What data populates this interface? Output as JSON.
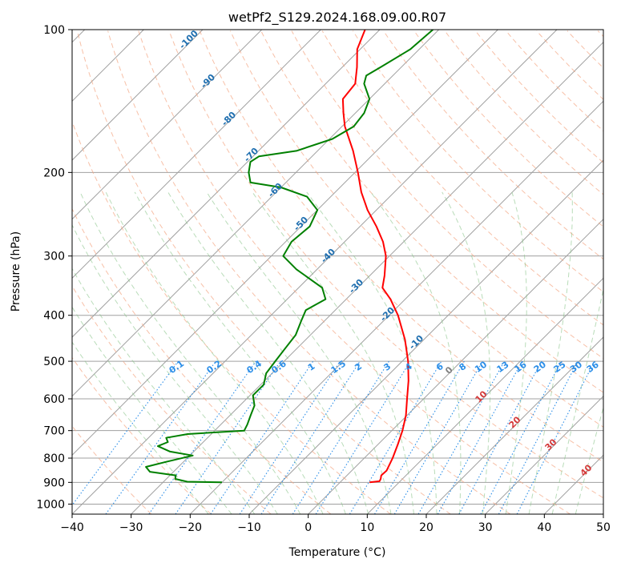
{
  "chart_data": {
    "type": "line",
    "title": "wetPf2_S129.2024.168.09.00.R07",
    "xlabel": "Temperature (°C)",
    "ylabel": "Pressure (hPa)",
    "xlim": [
      -40,
      50
    ],
    "ylim": [
      1050,
      100
    ],
    "y_scale": "log",
    "skew": "skew-T log-p diagram",
    "x_ticks": [
      -40,
      -30,
      -20,
      -10,
      0,
      10,
      20,
      30,
      40,
      50
    ],
    "y_ticks": [
      100,
      200,
      300,
      400,
      500,
      600,
      700,
      800,
      900,
      1000
    ],
    "grid": true,
    "series": [
      {
        "role": "temperature",
        "color": "#ff0000",
        "points": [
          {
            "p": 900,
            "t": 5.0
          },
          {
            "p": 895,
            "t": 6.5
          },
          {
            "p": 885,
            "t": 6.3
          },
          {
            "p": 870,
            "t": 5.8
          },
          {
            "p": 850,
            "t": 5.9
          },
          {
            "p": 800,
            "t": 4.8
          },
          {
            "p": 750,
            "t": 3.4
          },
          {
            "p": 700,
            "t": 1.8
          },
          {
            "p": 650,
            "t": -0.2
          },
          {
            "p": 600,
            "t": -2.8
          },
          {
            "p": 550,
            "t": -5.6
          },
          {
            "p": 500,
            "t": -9.0
          },
          {
            "p": 450,
            "t": -13.2
          },
          {
            "p": 400,
            "t": -18.5
          },
          {
            "p": 370,
            "t": -22.5
          },
          {
            "p": 350,
            "t": -25.8
          },
          {
            "p": 330,
            "t": -27.5
          },
          {
            "p": 300,
            "t": -30.6
          },
          {
            "p": 280,
            "t": -33.5
          },
          {
            "p": 260,
            "t": -37.2
          },
          {
            "p": 240,
            "t": -41.5
          },
          {
            "p": 220,
            "t": -45.6
          },
          {
            "p": 200,
            "t": -49.5
          },
          {
            "p": 180,
            "t": -54.0
          },
          {
            "p": 160,
            "t": -59.5
          },
          {
            "p": 150,
            "t": -62.0
          },
          {
            "p": 140,
            "t": -64.5
          },
          {
            "p": 130,
            "t": -65.0
          },
          {
            "p": 120,
            "t": -67.5
          },
          {
            "p": 110,
            "t": -70.5
          },
          {
            "p": 100,
            "t": -72.5
          }
        ]
      },
      {
        "role": "dewpoint",
        "color": "#008000",
        "points": [
          {
            "p": 900,
            "t": -20.0
          },
          {
            "p": 897,
            "t": -26.0
          },
          {
            "p": 885,
            "t": -28.5
          },
          {
            "p": 870,
            "t": -29.0
          },
          {
            "p": 855,
            "t": -34.0
          },
          {
            "p": 835,
            "t": -35.5
          },
          {
            "p": 815,
            "t": -33.0
          },
          {
            "p": 790,
            "t": -29.5
          },
          {
            "p": 775,
            "t": -34.0
          },
          {
            "p": 755,
            "t": -37.0
          },
          {
            "p": 740,
            "t": -36.0
          },
          {
            "p": 725,
            "t": -37.0
          },
          {
            "p": 712,
            "t": -34.0
          },
          {
            "p": 700,
            "t": -25.0
          },
          {
            "p": 680,
            "t": -25.5
          },
          {
            "p": 650,
            "t": -26.5
          },
          {
            "p": 620,
            "t": -27.5
          },
          {
            "p": 590,
            "t": -29.5
          },
          {
            "p": 560,
            "t": -29.5
          },
          {
            "p": 530,
            "t": -31.0
          },
          {
            "p": 500,
            "t": -31.5
          },
          {
            "p": 470,
            "t": -32.0
          },
          {
            "p": 440,
            "t": -32.5
          },
          {
            "p": 410,
            "t": -34.0
          },
          {
            "p": 390,
            "t": -35.0
          },
          {
            "p": 370,
            "t": -33.5
          },
          {
            "p": 350,
            "t": -36.0
          },
          {
            "p": 320,
            "t": -43.5
          },
          {
            "p": 300,
            "t": -48.0
          },
          {
            "p": 280,
            "t": -49.0
          },
          {
            "p": 260,
            "t": -48.5
          },
          {
            "p": 240,
            "t": -50.0
          },
          {
            "p": 225,
            "t": -54.0
          },
          {
            "p": 215,
            "t": -60.0
          },
          {
            "p": 210,
            "t": -66.0
          },
          {
            "p": 200,
            "t": -68.0
          },
          {
            "p": 190,
            "t": -69.5
          },
          {
            "p": 185,
            "t": -69.0
          },
          {
            "p": 180,
            "t": -63.5
          },
          {
            "p": 170,
            "t": -59.5
          },
          {
            "p": 160,
            "t": -58.0
          },
          {
            "p": 150,
            "t": -58.5
          },
          {
            "p": 140,
            "t": -60.0
          },
          {
            "p": 130,
            "t": -63.5
          },
          {
            "p": 125,
            "t": -64.5
          },
          {
            "p": 120,
            "t": -63.5
          },
          {
            "p": 110,
            "t": -61.5
          },
          {
            "p": 100,
            "t": -61.0
          }
        ]
      }
    ],
    "mixing_ratio_labels": [
      "0.1",
      "0.2",
      "0.4",
      "0.6",
      "1",
      "1.5",
      "2",
      "3",
      "4",
      "6",
      "8",
      "10",
      "13",
      "16",
      "20",
      "25",
      "30",
      "36"
    ],
    "mixing_ratio_values": [
      0.1,
      0.2,
      0.4,
      0.6,
      1,
      1.5,
      2,
      3,
      4,
      6,
      8,
      10,
      13,
      16,
      20,
      25,
      30,
      36
    ],
    "dry_adiabat_labels": [
      "-100",
      "-90",
      "-80",
      "-70",
      "-60",
      "-50",
      "-40",
      "-30",
      "-20",
      "-10"
    ],
    "dry_adiabat_values": [
      -100,
      -90,
      -80,
      -70,
      -60,
      -50,
      -40,
      -30,
      -20,
      -10
    ],
    "moist_adiabat_labels": [
      "0",
      "10",
      "20",
      "30",
      "40"
    ],
    "moist_adiabat_values": [
      0,
      10,
      20,
      30,
      40
    ],
    "colors": {
      "temperature": "#ff0000",
      "dewpoint": "#008000",
      "isotherm": "#a0a0a0",
      "isobar": "#a0a0a0",
      "dry_adiabat": "#f4a582",
      "moist_adiabat": "#8bc48a",
      "mixing_ratio": "#2b8ee8",
      "dry_label": "#1f6fb0",
      "moist_label": "#d43a3a"
    }
  }
}
